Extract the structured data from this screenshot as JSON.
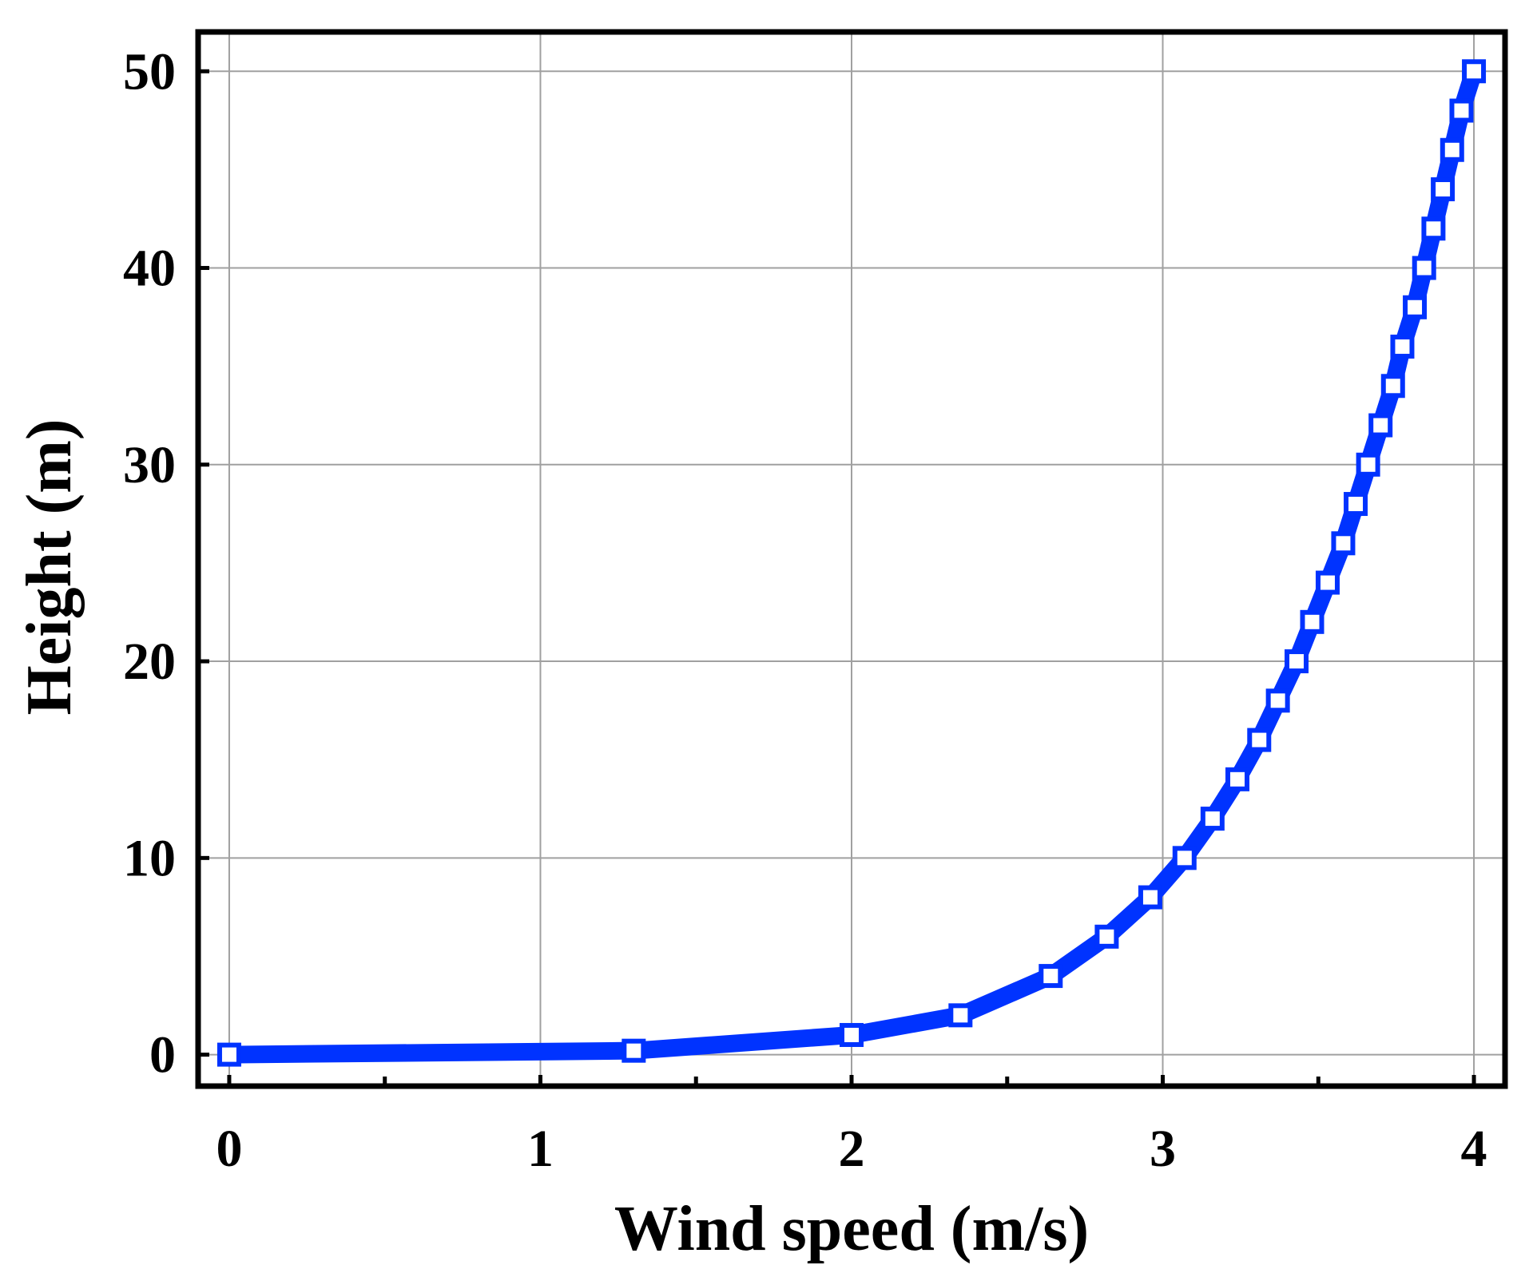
{
  "chart_data": {
    "type": "line",
    "title": "",
    "xlabel": "Wind speed (m/s)",
    "ylabel": "Height (m)",
    "xlim": [
      -0.1,
      4.1
    ],
    "ylim": [
      -1.6,
      52
    ],
    "xticks": [
      0,
      1,
      2,
      3,
      4
    ],
    "xtick_labels": [
      "0",
      "1",
      "2",
      "3",
      "4"
    ],
    "yticks": [
      0,
      10,
      20,
      30,
      40,
      50
    ],
    "ytick_labels": [
      "0",
      "10",
      "20",
      "30",
      "40",
      "50"
    ],
    "x_minor_ticks": [
      0.5,
      1.5,
      2.5,
      3.5
    ],
    "grid": true,
    "legend": "none",
    "series": [
      {
        "color": "#0033ff",
        "marker": "open-square",
        "x": [
          0,
          1.3,
          2.0,
          2.35,
          2.64,
          2.82,
          2.96,
          3.07,
          3.16,
          3.24,
          3.31,
          3.37,
          3.43,
          3.48,
          3.53,
          3.58,
          3.62,
          3.66,
          3.7,
          3.74,
          3.77,
          3.81,
          3.84,
          3.87,
          3.9,
          3.93,
          3.96,
          4.0
        ],
        "y": [
          0,
          0.2,
          1,
          2,
          4,
          6,
          8,
          10,
          12,
          14,
          16,
          18,
          20,
          22,
          24,
          26,
          28,
          30,
          32,
          34,
          36,
          38,
          40,
          42,
          44,
          46,
          48,
          50
        ]
      }
    ]
  }
}
